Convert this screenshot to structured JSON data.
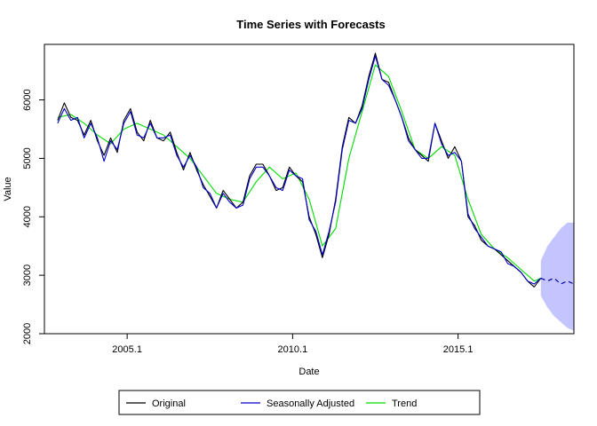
{
  "chart_data": {
    "type": "line",
    "title": "Time Series with Forecasts",
    "xlabel": "Date",
    "ylabel": "Value",
    "xlim": [
      2002.6,
      2018.6
    ],
    "ylim": [
      2000,
      6950
    ],
    "x_ticks": [
      2005.1,
      2010.1,
      2015.1
    ],
    "x_tick_labels": [
      "2005.1",
      "2010.1",
      "2015.1"
    ],
    "y_ticks": [
      2000,
      3000,
      4000,
      5000,
      6000
    ],
    "y_tick_labels": [
      "2000",
      "3000",
      "4000",
      "5000",
      "6000"
    ],
    "grid": false,
    "legend_position": "bottom",
    "series": [
      {
        "name": "Original",
        "color": "#000000",
        "x": [
          2003.0,
          2003.2,
          2003.4,
          2003.6,
          2003.8,
          2004.0,
          2004.2,
          2004.4,
          2004.6,
          2004.8,
          2005.0,
          2005.2,
          2005.4,
          2005.6,
          2005.8,
          2006.0,
          2006.2,
          2006.4,
          2006.6,
          2006.8,
          2007.0,
          2007.2,
          2007.4,
          2007.6,
          2007.8,
          2008.0,
          2008.2,
          2008.4,
          2008.6,
          2008.8,
          2009.0,
          2009.2,
          2009.4,
          2009.6,
          2009.8,
          2010.0,
          2010.2,
          2010.4,
          2010.6,
          2010.8,
          2011.0,
          2011.2,
          2011.4,
          2011.6,
          2011.8,
          2012.0,
          2012.2,
          2012.4,
          2012.6,
          2012.8,
          2013.0,
          2013.2,
          2013.4,
          2013.6,
          2013.8,
          2014.0,
          2014.2,
          2014.4,
          2014.6,
          2014.8,
          2015.0,
          2015.2,
          2015.4,
          2015.6,
          2015.8,
          2016.0,
          2016.2,
          2016.4,
          2016.6,
          2016.8,
          2017.0,
          2017.2,
          2017.4,
          2017.6
        ],
        "y": [
          5650,
          5950,
          5700,
          5650,
          5400,
          5650,
          5300,
          5050,
          5350,
          5100,
          5650,
          5850,
          5450,
          5300,
          5650,
          5350,
          5300,
          5450,
          5100,
          4800,
          5100,
          4800,
          4550,
          4350,
          4150,
          4450,
          4300,
          4150,
          4250,
          4700,
          4900,
          4900,
          4700,
          4450,
          4500,
          4850,
          4700,
          4600,
          4000,
          3700,
          3300,
          3700,
          4300,
          5200,
          5700,
          5600,
          5900,
          6400,
          6800,
          6350,
          6300,
          6000,
          5700,
          5350,
          5150,
          5050,
          4950,
          5600,
          5300,
          5000,
          5200,
          4950,
          4000,
          3850,
          3600,
          3500,
          3450,
          3350,
          3250,
          3150,
          3050,
          2900,
          2800,
          2950
        ],
        "y_digitized": true
      },
      {
        "name": "Seasonally Adjusted",
        "color": "#0000CC",
        "x": [
          2003.0,
          2003.2,
          2003.4,
          2003.6,
          2003.8,
          2004.0,
          2004.2,
          2004.4,
          2004.6,
          2004.8,
          2005.0,
          2005.2,
          2005.4,
          2005.6,
          2005.8,
          2006.0,
          2006.2,
          2006.4,
          2006.6,
          2006.8,
          2007.0,
          2007.2,
          2007.4,
          2007.6,
          2007.8,
          2008.0,
          2008.2,
          2008.4,
          2008.6,
          2008.8,
          2009.0,
          2009.2,
          2009.4,
          2009.6,
          2009.8,
          2010.0,
          2010.2,
          2010.4,
          2010.6,
          2010.8,
          2011.0,
          2011.2,
          2011.4,
          2011.6,
          2011.8,
          2012.0,
          2012.2,
          2012.4,
          2012.6,
          2012.8,
          2013.0,
          2013.2,
          2013.4,
          2013.6,
          2013.8,
          2014.0,
          2014.2,
          2014.4,
          2014.6,
          2014.8,
          2015.0,
          2015.2,
          2015.4,
          2015.6,
          2015.8,
          2016.0,
          2016.2,
          2016.4,
          2016.6,
          2016.8,
          2017.0,
          2017.2,
          2017.4,
          2017.6
        ],
        "y": [
          5600,
          5850,
          5650,
          5700,
          5350,
          5600,
          5350,
          4950,
          5300,
          5150,
          5600,
          5800,
          5400,
          5350,
          5600,
          5350,
          5350,
          5400,
          5050,
          4850,
          5050,
          4850,
          4500,
          4400,
          4150,
          4400,
          4250,
          4150,
          4200,
          4650,
          4850,
          4850,
          4700,
          4500,
          4450,
          4800,
          4700,
          4650,
          3950,
          3750,
          3350,
          3750,
          4250,
          5150,
          5650,
          5600,
          5850,
          6350,
          6750,
          6350,
          6250,
          6000,
          5700,
          5300,
          5150,
          5000,
          5000,
          5600,
          5250,
          5050,
          5100,
          4950,
          4050,
          3800,
          3650,
          3500,
          3450,
          3400,
          3200,
          3150,
          3050,
          2900,
          2850,
          2950
        ],
        "y_digitized": true
      },
      {
        "name": "Trend",
        "color": "#00DD00",
        "x": [
          2003.0,
          2003.4,
          2003.8,
          2004.2,
          2004.6,
          2005.0,
          2005.4,
          2005.8,
          2006.2,
          2006.6,
          2007.0,
          2007.4,
          2007.8,
          2008.2,
          2008.6,
          2009.0,
          2009.4,
          2009.8,
          2010.2,
          2010.6,
          2011.0,
          2011.4,
          2011.8,
          2012.2,
          2012.6,
          2013.0,
          2013.4,
          2013.8,
          2014.2,
          2014.6,
          2015.0,
          2015.4,
          2015.8,
          2016.2,
          2016.6,
          2017.0,
          2017.4,
          2017.6
        ],
        "y": [
          5700,
          5750,
          5600,
          5400,
          5250,
          5500,
          5600,
          5500,
          5400,
          5200,
          5000,
          4700,
          4400,
          4300,
          4250,
          4600,
          4850,
          4650,
          4750,
          4300,
          3500,
          3800,
          5000,
          5800,
          6600,
          6400,
          5800,
          5150,
          5000,
          5200,
          5050,
          4300,
          3700,
          3450,
          3300,
          3100,
          2900,
          2950
        ],
        "y_digitized": true
      }
    ],
    "forecast": {
      "color": "#0000AA",
      "band_color": "#C4C4FF",
      "x": [
        2017.6,
        2017.8,
        2018.0,
        2018.2,
        2018.4,
        2018.6
      ],
      "y": [
        2950,
        2900,
        2950,
        2850,
        2900,
        2850
      ],
      "lower": [
        2650,
        2450,
        2300,
        2200,
        2100,
        2050
      ],
      "upper": [
        3250,
        3500,
        3650,
        3800,
        3900,
        3900
      ],
      "y_digitized": true
    }
  }
}
